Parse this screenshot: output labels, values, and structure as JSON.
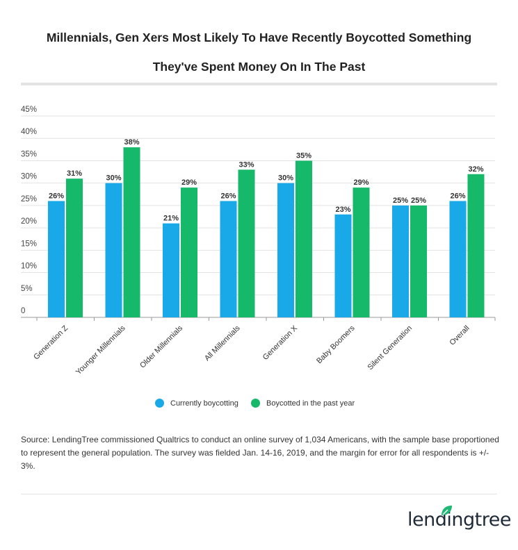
{
  "chart_data": {
    "type": "bar",
    "title": "Millennials, Gen Xers Most Likely To Have Recently Boycotted Something They've Spent Money On In The Past",
    "title_lines": [
      "Millennials, Gen Xers Most Likely To Have Recently Boycotted Something",
      "They've Spent Money On In The Past"
    ],
    "categories": [
      "Generation Z",
      "Younger Millennials",
      "Older Millennials",
      "All Millennials",
      "Generation X",
      "Baby Boomers",
      "Silent Generation",
      "Overall"
    ],
    "series": [
      {
        "name": "Currently boycotting",
        "color": "#1aa9e8",
        "values": [
          26,
          30,
          21,
          26,
          30,
          23,
          25,
          26
        ]
      },
      {
        "name": "Boycotted in the past year",
        "color": "#16b86a",
        "values": [
          31,
          38,
          29,
          33,
          35,
          29,
          25,
          32
        ]
      }
    ],
    "yticks": [
      "0",
      "5%",
      "10%",
      "15%",
      "20%",
      "25%",
      "30%",
      "35%",
      "40%",
      "45%"
    ],
    "ylim": [
      0,
      45
    ],
    "grid": true,
    "legend_position": "bottom"
  },
  "source": "Source: LendingTree commissioned Qualtrics to conduct an online survey of 1,034 Americans, with the sample base proportioned to represent the general population. The survey was fielded Jan. 14-16, 2019, and the margin for error for all respondents is +/- 3%.",
  "logo": "lendingtree"
}
